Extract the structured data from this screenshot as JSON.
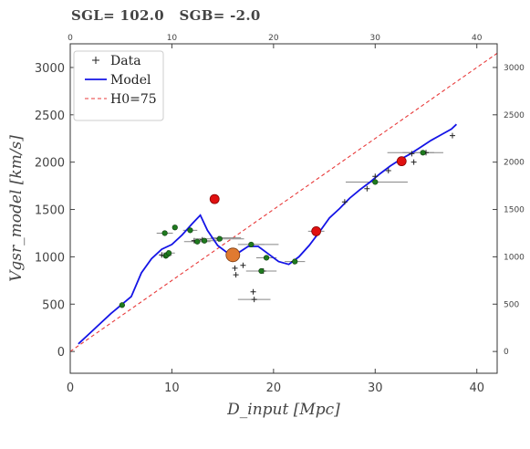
{
  "chart_data": {
    "type": "scatter",
    "title": "SGL= 102.0   SGB= -2.0",
    "xlabel": "D_input [Mpc]",
    "ylabel": "Vgsr_model [km/s]",
    "xlim": [
      0,
      42
    ],
    "ylim": [
      -230,
      3250
    ],
    "x_ticks": [
      0,
      10,
      20,
      30,
      40
    ],
    "y_ticks": [
      0,
      500,
      1000,
      1500,
      2000,
      2500,
      3000
    ],
    "grid": false,
    "legend_position": "top-left",
    "legend": [
      "Data",
      "Model",
      "H0=75"
    ],
    "colors": {
      "model": "#1414e6",
      "hubble": "#e83a3a",
      "green": "#1f7a1f",
      "red": "#e01010",
      "orange": "#e07a30",
      "errorbar": "#888888",
      "data": "#222222"
    },
    "series": [
      {
        "name": "Model",
        "style": "line",
        "x": [
          0.8,
          2,
          3,
          4,
          5,
          6,
          7,
          8,
          9,
          10,
          11,
          12,
          12.8,
          13.5,
          14.5,
          15.5,
          16.5,
          17.5,
          18.5,
          19.5,
          20.5,
          21.5,
          22.5,
          23.5,
          24.5,
          25.5,
          26.5,
          27.5,
          28.5,
          29.5,
          30.5,
          31.5,
          32.5,
          33.5,
          34.5,
          35.5,
          36.5,
          37.5,
          38
        ],
        "y": [
          80,
          200,
          300,
          400,
          490,
          580,
          830,
          980,
          1080,
          1130,
          1230,
          1350,
          1440,
          1280,
          1120,
          1040,
          1040,
          1110,
          1110,
          1030,
          950,
          920,
          1000,
          1120,
          1260,
          1410,
          1510,
          1620,
          1710,
          1790,
          1880,
          1960,
          2030,
          2090,
          2160,
          2230,
          2290,
          2350,
          2400
        ]
      },
      {
        "name": "H0=75",
        "style": "dashed",
        "x": [
          0,
          42
        ],
        "y": [
          0,
          3150
        ]
      },
      {
        "name": "Data",
        "style": "plus",
        "x": [
          5.1,
          9.0,
          9.6,
          12.2,
          13.0,
          14.2,
          14.6,
          15.9,
          16.2,
          16.3,
          17.0,
          18.0,
          18.1,
          19.0,
          22.0,
          24.2,
          27.0,
          29.2,
          30.0,
          31.3,
          32.5,
          33.6,
          33.8,
          35.0,
          37.6
        ],
        "y": [
          490,
          1020,
          1040,
          1170,
          1180,
          1610,
          1190,
          1010,
          880,
          810,
          910,
          630,
          550,
          850,
          950,
          1270,
          1580,
          1720,
          1850,
          1910,
          2010,
          2090,
          2000,
          2100,
          2280
        ]
      },
      {
        "name": "Green points",
        "style": "green-dot",
        "x": [
          5.1,
          9.3,
          9.4,
          9.5,
          9.7,
          10.3,
          11.8,
          12.5,
          13.2,
          14.7,
          17.8,
          18.8,
          19.3,
          22.1,
          30.0,
          34.7
        ],
        "y": [
          490,
          1250,
          1010,
          1020,
          1040,
          1310,
          1280,
          1160,
          1170,
          1190,
          1130,
          850,
          990,
          950,
          1790,
          2100
        ],
        "xerr": [
          0,
          0.8,
          0.5,
          0.5,
          0.6,
          0,
          0.7,
          1.3,
          1.3,
          2.4,
          1.3,
          1.5,
          1.0,
          1.0,
          2.9,
          2.0
        ]
      },
      {
        "name": "Red points",
        "style": "red-dot",
        "x": [
          14.2,
          24.2,
          32.6
        ],
        "y": [
          1610,
          1270,
          2010
        ],
        "xerr": [
          0,
          0.8,
          0
        ]
      },
      {
        "name": "Orange point",
        "style": "orange-dot",
        "x": [
          16.0
        ],
        "y": [
          1020
        ],
        "xerr": [
          0
        ]
      },
      {
        "name": "Gray errorbars",
        "style": "errorbar",
        "x": [
          15.3,
          18.1,
          19.2,
          30.2,
          33.5
        ],
        "y": [
          1200,
          550,
          1130,
          1790,
          2100
        ],
        "xerr": [
          1.5,
          1.6,
          1.3,
          3.0,
          2.3
        ]
      }
    ]
  }
}
